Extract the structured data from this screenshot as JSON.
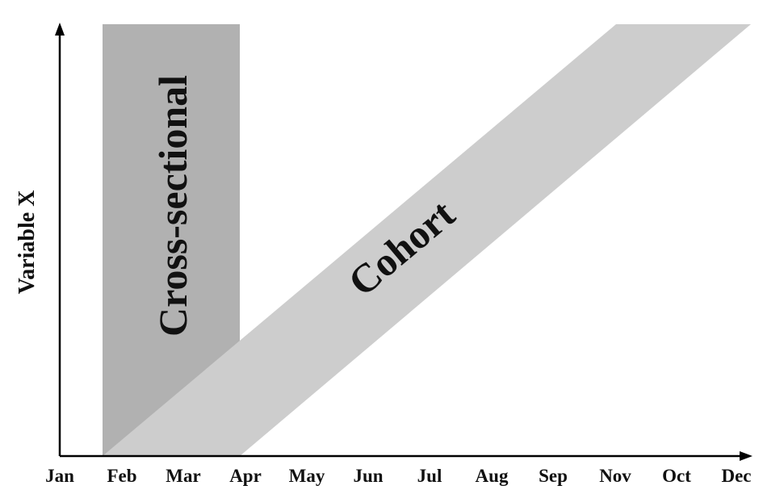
{
  "diagram": {
    "y_axis_label": "Variable X",
    "x_axis_ticks": [
      "Jan",
      "Feb",
      "Mar",
      "Apr",
      "May",
      "Jun",
      "Jul",
      "Aug",
      "Sep",
      "Nov",
      "Oct",
      "Dec"
    ],
    "regions": [
      {
        "id": "cross-sectional",
        "label": "Cross-sectional",
        "color": "#b1b1b1"
      },
      {
        "id": "cohort",
        "label": "Cohort",
        "color": "#cdcdcd"
      }
    ],
    "axis_color": "#000000",
    "text_color": "#111111"
  }
}
